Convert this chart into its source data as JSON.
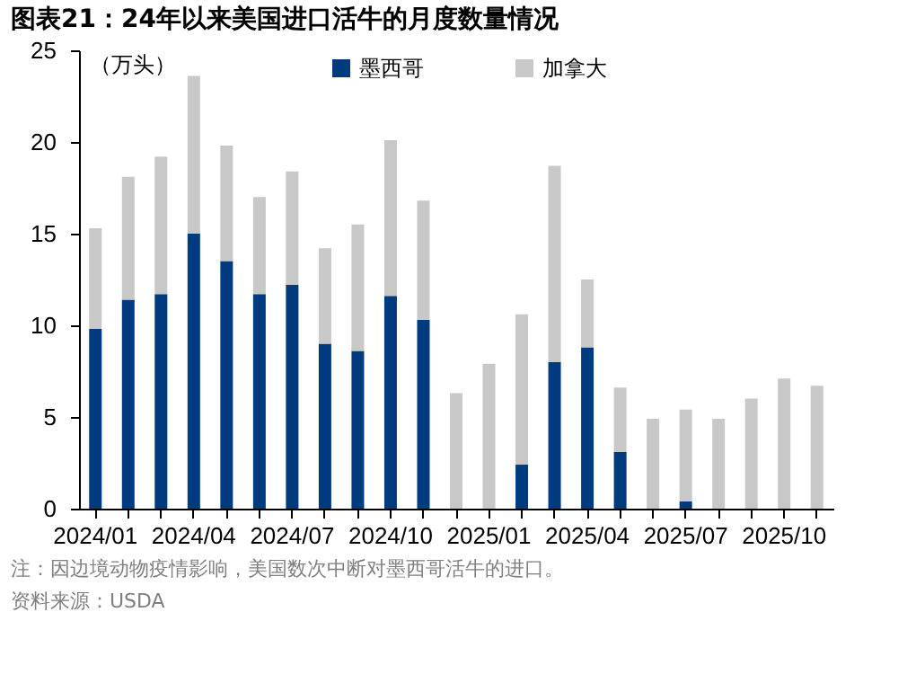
{
  "chart_data": {
    "type": "bar",
    "stacked": true,
    "title": "图表21：24年以来美国进口活牛的月度数量情况",
    "ylabel": "（万头）",
    "categories": [
      "2024/01",
      null,
      null,
      "2024/04",
      null,
      null,
      "2024/07",
      null,
      null,
      "2024/10",
      null,
      null,
      "2025/01",
      null,
      null,
      "2025/04",
      null,
      null,
      "2025/07",
      null,
      null,
      "2025/10",
      null
    ],
    "series": [
      {
        "name": "墨西哥",
        "color": "#003b80",
        "values": [
          9.8,
          11.4,
          11.7,
          15.0,
          13.5,
          11.7,
          12.2,
          9.0,
          8.6,
          11.6,
          10.3,
          0,
          0,
          2.4,
          8.0,
          8.8,
          3.1,
          0,
          0.4,
          0,
          0,
          0,
          0
        ]
      },
      {
        "name": "加拿大",
        "color": "#c8c8c8",
        "values": [
          5.5,
          6.7,
          7.5,
          8.6,
          6.3,
          5.3,
          6.2,
          5.2,
          6.9,
          8.5,
          6.5,
          6.3,
          7.9,
          8.2,
          10.7,
          3.7,
          3.5,
          4.9,
          5.0,
          4.9,
          6.0,
          7.1,
          6.7
        ]
      }
    ],
    "ylim": [
      0,
      25
    ],
    "yticks": [
      0,
      5,
      10,
      15,
      20,
      25
    ],
    "grid": false,
    "legend": "top",
    "annotations": [
      "注：因边境动物疫情影响，美国数次中断对墨西哥活牛的进口。",
      "资料来源：USDA"
    ]
  }
}
